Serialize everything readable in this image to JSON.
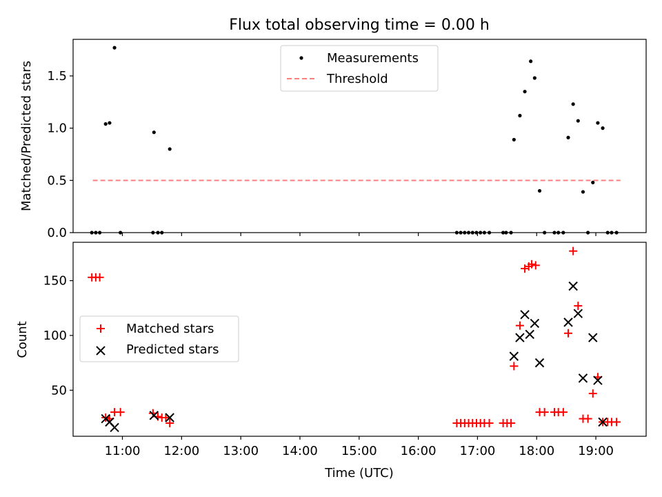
{
  "chart_data": {
    "title": "Flux total observing time = 0.00 h",
    "xlabel": "Time (UTC)",
    "x_ticks": [
      "11:00",
      "12:00",
      "13:00",
      "14:00",
      "15:00",
      "16:00",
      "17:00",
      "18:00",
      "19:00"
    ],
    "xlim": [
      "10:10",
      "19:51"
    ],
    "panels": [
      {
        "type": "scatter",
        "ylabel": "Matched/Predicted stars",
        "ylim": [
          0,
          1.85
        ],
        "y_ticks": [
          "0.0",
          "0.5",
          "1.0",
          "1.5"
        ],
        "legend": {
          "placement": "top-center",
          "entries": [
            "Measurements",
            "Threshold"
          ]
        },
        "threshold": {
          "name": "Threshold",
          "value": 0.5,
          "x_start": "10:30",
          "x_end": "19:25",
          "color": "#ff7f7f"
        },
        "series": [
          {
            "name": "Measurements",
            "marker": "dot",
            "color": "#000000",
            "points": [
              [
                "10:29",
                0
              ],
              [
                "10:33",
                0
              ],
              [
                "10:37",
                0
              ],
              [
                "10:43",
                1.04
              ],
              [
                "10:47",
                1.05
              ],
              [
                "10:52",
                1.77
              ],
              [
                "10:58",
                0
              ],
              [
                "11:31",
                0
              ],
              [
                "11:32",
                0.96
              ],
              [
                "11:36",
                0
              ],
              [
                "11:40",
                0
              ],
              [
                "11:48",
                0.8
              ],
              [
                "16:39",
                0
              ],
              [
                "16:43",
                0
              ],
              [
                "16:47",
                0
              ],
              [
                "16:51",
                0
              ],
              [
                "16:55",
                0
              ],
              [
                "16:59",
                0
              ],
              [
                "17:03",
                0
              ],
              [
                "17:07",
                0
              ],
              [
                "17:12",
                0
              ],
              [
                "17:26",
                0
              ],
              [
                "17:29",
                0
              ],
              [
                "17:34",
                0
              ],
              [
                "17:37",
                0.89
              ],
              [
                "17:43",
                1.12
              ],
              [
                "17:48",
                1.35
              ],
              [
                "17:54",
                1.64
              ],
              [
                "17:58",
                1.48
              ],
              [
                "18:03",
                0.4
              ],
              [
                "18:08",
                0
              ],
              [
                "18:18",
                0
              ],
              [
                "18:22",
                0
              ],
              [
                "18:27",
                0
              ],
              [
                "18:32",
                0.91
              ],
              [
                "18:37",
                1.23
              ],
              [
                "18:42",
                1.07
              ],
              [
                "18:47",
                0.39
              ],
              [
                "18:52",
                0
              ],
              [
                "18:57",
                0.48
              ],
              [
                "19:02",
                1.05
              ],
              [
                "19:07",
                1.0
              ],
              [
                "19:12",
                0
              ],
              [
                "19:16",
                0
              ],
              [
                "19:21",
                0
              ]
            ]
          }
        ]
      },
      {
        "type": "scatter",
        "ylabel": "Count",
        "ylim": [
          8,
          185
        ],
        "y_ticks": [
          "50",
          "100",
          "150"
        ],
        "legend": {
          "placement": "center-left",
          "entries": [
            "Matched stars",
            "Predicted stars"
          ]
        },
        "series": [
          {
            "name": "Matched stars",
            "marker": "plus",
            "color": "#ff0000",
            "points": [
              [
                "10:29",
                153
              ],
              [
                "10:33",
                153
              ],
              [
                "10:37",
                153
              ],
              [
                "10:43",
                25
              ],
              [
                "10:47",
                24
              ],
              [
                "10:52",
                30
              ],
              [
                "10:58",
                30
              ],
              [
                "11:31",
                29
              ],
              [
                "11:36",
                26
              ],
              [
                "11:40",
                25
              ],
              [
                "11:44",
                25
              ],
              [
                "11:48",
                20
              ],
              [
                "16:39",
                20
              ],
              [
                "16:43",
                20
              ],
              [
                "16:47",
                20
              ],
              [
                "16:51",
                20
              ],
              [
                "16:55",
                20
              ],
              [
                "16:59",
                20
              ],
              [
                "17:03",
                20
              ],
              [
                "17:07",
                20
              ],
              [
                "17:12",
                20
              ],
              [
                "17:26",
                20
              ],
              [
                "17:30",
                20
              ],
              [
                "17:34",
                20
              ],
              [
                "17:37",
                72
              ],
              [
                "17:43",
                109
              ],
              [
                "17:48",
                161
              ],
              [
                "17:52",
                163
              ],
              [
                "17:55",
                165
              ],
              [
                "17:59",
                164
              ],
              [
                "18:03",
                30
              ],
              [
                "18:08",
                30
              ],
              [
                "18:18",
                30
              ],
              [
                "18:22",
                30
              ],
              [
                "18:27",
                30
              ],
              [
                "18:32",
                102
              ],
              [
                "18:37",
                177
              ],
              [
                "18:42",
                127
              ],
              [
                "18:47",
                24
              ],
              [
                "18:52",
                24
              ],
              [
                "18:57",
                47
              ],
              [
                "19:02",
                62
              ],
              [
                "19:07",
                21
              ],
              [
                "19:12",
                21
              ],
              [
                "19:16",
                21
              ],
              [
                "19:21",
                21
              ]
            ]
          },
          {
            "name": "Predicted stars",
            "marker": "x",
            "color": "#000000",
            "points": [
              [
                "10:43",
                24
              ],
              [
                "10:47",
                21
              ],
              [
                "10:52",
                16
              ],
              [
                "11:32",
                27
              ],
              [
                "11:48",
                25
              ],
              [
                "17:37",
                81
              ],
              [
                "17:43",
                98
              ],
              [
                "17:48",
                119
              ],
              [
                "17:53",
                101
              ],
              [
                "17:58",
                111
              ],
              [
                "18:03",
                75
              ],
              [
                "18:32",
                112
              ],
              [
                "18:37",
                145
              ],
              [
                "18:42",
                120
              ],
              [
                "18:47",
                61
              ],
              [
                "18:57",
                98
              ],
              [
                "19:02",
                59
              ],
              [
                "19:07",
                21
              ]
            ]
          }
        ]
      }
    ]
  }
}
